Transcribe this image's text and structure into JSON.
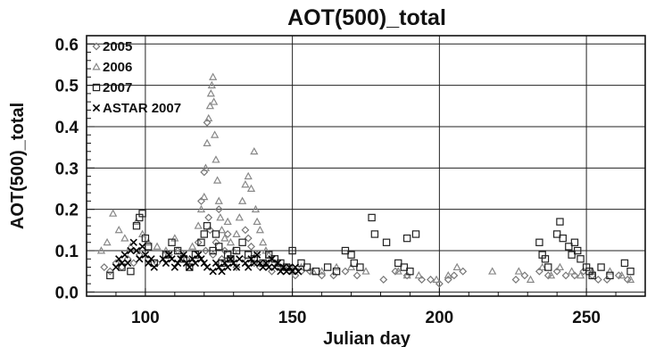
{
  "chart_data": {
    "type": "scatter",
    "title": "AOT(500)_total",
    "xlabel": "Julian day",
    "ylabel": "AOT(500)_total",
    "xlim": [
      80,
      270
    ],
    "ylim": [
      -0.01,
      0.62
    ],
    "xticks": [
      {
        "v": 100,
        "label": "100"
      },
      {
        "v": 150,
        "label": "150"
      },
      {
        "v": 200,
        "label": "200"
      },
      {
        "v": 250,
        "label": "250"
      }
    ],
    "yticks": [
      {
        "v": 0.0,
        "label": "0.0"
      },
      {
        "v": 0.1,
        "label": "0.1"
      },
      {
        "v": 0.2,
        "label": "0.2"
      },
      {
        "v": 0.3,
        "label": "0.3"
      },
      {
        "v": 0.4,
        "label": "0.4"
      },
      {
        "v": 0.5,
        "label": "0.5"
      },
      {
        "v": 0.6,
        "label": "0.6"
      }
    ],
    "grid": true,
    "legend_position": "top-left",
    "series": [
      {
        "name": "2005",
        "marker": "diamond",
        "color": "#777777",
        "points": [
          [
            86,
            0.06
          ],
          [
            88,
            0.05
          ],
          [
            90,
            0.07
          ],
          [
            92,
            0.06
          ],
          [
            94,
            0.08
          ],
          [
            96,
            0.07
          ],
          [
            98,
            0.09
          ],
          [
            101,
            0.08
          ],
          [
            104,
            0.07
          ],
          [
            108,
            0.09
          ],
          [
            111,
            0.1
          ],
          [
            114,
            0.08
          ],
          [
            116,
            0.07
          ],
          [
            118,
            0.12
          ],
          [
            119,
            0.22
          ],
          [
            120,
            0.29
          ],
          [
            120.5,
            0.1
          ],
          [
            121,
            0.41
          ],
          [
            121.5,
            0.18
          ],
          [
            122,
            0.15
          ],
          [
            123,
            0.09
          ],
          [
            124,
            0.12
          ],
          [
            125,
            0.2
          ],
          [
            126,
            0.08
          ],
          [
            127,
            0.1
          ],
          [
            128,
            0.14
          ],
          [
            129,
            0.08
          ],
          [
            131,
            0.06
          ],
          [
            133,
            0.08
          ],
          [
            134,
            0.15
          ],
          [
            135,
            0.13
          ],
          [
            136,
            0.11
          ],
          [
            137,
            0.07
          ],
          [
            138,
            0.09
          ],
          [
            139,
            0.06
          ],
          [
            141,
            0.07
          ],
          [
            143,
            0.05
          ],
          [
            145,
            0.06
          ],
          [
            147,
            0.05
          ],
          [
            149,
            0.06
          ],
          [
            151,
            0.04
          ],
          [
            153,
            0.05
          ],
          [
            156,
            0.05
          ],
          [
            160,
            0.04
          ],
          [
            164,
            0.04
          ],
          [
            168,
            0.05
          ],
          [
            172,
            0.04
          ],
          [
            181,
            0.03
          ],
          [
            185,
            0.05
          ],
          [
            189,
            0.04
          ],
          [
            194,
            0.03
          ],
          [
            197,
            0.03
          ],
          [
            200,
            0.02
          ],
          [
            203,
            0.03
          ],
          [
            205,
            0.04
          ],
          [
            208,
            0.05
          ],
          [
            226,
            0.03
          ],
          [
            229,
            0.04
          ],
          [
            234,
            0.05
          ],
          [
            237,
            0.04
          ],
          [
            240,
            0.05
          ],
          [
            243,
            0.04
          ],
          [
            246,
            0.04
          ],
          [
            249,
            0.05
          ],
          [
            252,
            0.04
          ],
          [
            254,
            0.03
          ],
          [
            257,
            0.03
          ],
          [
            261,
            0.04
          ],
          [
            264,
            0.03
          ]
        ]
      },
      {
        "name": "2006",
        "marker": "triangle",
        "color": "#888888",
        "points": [
          [
            85,
            0.1
          ],
          [
            87,
            0.12
          ],
          [
            89,
            0.19
          ],
          [
            91,
            0.15
          ],
          [
            93,
            0.13
          ],
          [
            95,
            0.11
          ],
          [
            97,
            0.17
          ],
          [
            99,
            0.14
          ],
          [
            101,
            0.12
          ],
          [
            104,
            0.11
          ],
          [
            107,
            0.1
          ],
          [
            110,
            0.13
          ],
          [
            113,
            0.09
          ],
          [
            116,
            0.11
          ],
          [
            118,
            0.16
          ],
          [
            119,
            0.2
          ],
          [
            120,
            0.23
          ],
          [
            120.5,
            0.3
          ],
          [
            121,
            0.36
          ],
          [
            121.5,
            0.42
          ],
          [
            122,
            0.45
          ],
          [
            122.3,
            0.48
          ],
          [
            122.6,
            0.5
          ],
          [
            123,
            0.52
          ],
          [
            123.3,
            0.46
          ],
          [
            123.6,
            0.38
          ],
          [
            124,
            0.32
          ],
          [
            124.5,
            0.27
          ],
          [
            125,
            0.22
          ],
          [
            125.5,
            0.18
          ],
          [
            126,
            0.15
          ],
          [
            127,
            0.13
          ],
          [
            128,
            0.17
          ],
          [
            129,
            0.12
          ],
          [
            130,
            0.1
          ],
          [
            131,
            0.14
          ],
          [
            132,
            0.18
          ],
          [
            133,
            0.22
          ],
          [
            134,
            0.26
          ],
          [
            135,
            0.28
          ],
          [
            136,
            0.25
          ],
          [
            137,
            0.34
          ],
          [
            137.5,
            0.2
          ],
          [
            138,
            0.17
          ],
          [
            139,
            0.15
          ],
          [
            140,
            0.12
          ],
          [
            141,
            0.1
          ],
          [
            142,
            0.09
          ],
          [
            143,
            0.08
          ],
          [
            145,
            0.07
          ],
          [
            147,
            0.06
          ],
          [
            150,
            0.05
          ],
          [
            153,
            0.06
          ],
          [
            157,
            0.05
          ],
          [
            160,
            0.05
          ],
          [
            165,
            0.06
          ],
          [
            170,
            0.06
          ],
          [
            175,
            0.05
          ],
          [
            186,
            0.05
          ],
          [
            189,
            0.04
          ],
          [
            193,
            0.04
          ],
          [
            199,
            0.03
          ],
          [
            203,
            0.04
          ],
          [
            206,
            0.06
          ],
          [
            218,
            0.05
          ],
          [
            227,
            0.05
          ],
          [
            231,
            0.03
          ],
          [
            235,
            0.06
          ],
          [
            238,
            0.04
          ],
          [
            241,
            0.06
          ],
          [
            245,
            0.05
          ],
          [
            248,
            0.04
          ],
          [
            252,
            0.05
          ],
          [
            258,
            0.05
          ],
          [
            262,
            0.04
          ],
          [
            265,
            0.03
          ]
        ]
      },
      {
        "name": "2007",
        "marker": "square",
        "color": "#222222",
        "points": [
          [
            88,
            0.04
          ],
          [
            92,
            0.06
          ],
          [
            95,
            0.05
          ],
          [
            97,
            0.16
          ],
          [
            98,
            0.18
          ],
          [
            99,
            0.19
          ],
          [
            100,
            0.13
          ],
          [
            101,
            0.11
          ],
          [
            103,
            0.07
          ],
          [
            107,
            0.09
          ],
          [
            109,
            0.12
          ],
          [
            111,
            0.1
          ],
          [
            113,
            0.08
          ],
          [
            115,
            0.06
          ],
          [
            117,
            0.09
          ],
          [
            119,
            0.12
          ],
          [
            120,
            0.14
          ],
          [
            121,
            0.16
          ],
          [
            123,
            0.1
          ],
          [
            124,
            0.14
          ],
          [
            125,
            0.11
          ],
          [
            126,
            0.07
          ],
          [
            128,
            0.09
          ],
          [
            129,
            0.08
          ],
          [
            131,
            0.1
          ],
          [
            133,
            0.12
          ],
          [
            135,
            0.09
          ],
          [
            137,
            0.08
          ],
          [
            140,
            0.07
          ],
          [
            142,
            0.09
          ],
          [
            144,
            0.08
          ],
          [
            146,
            0.07
          ],
          [
            148,
            0.06
          ],
          [
            150,
            0.1
          ],
          [
            153,
            0.07
          ],
          [
            155,
            0.06
          ],
          [
            158,
            0.05
          ],
          [
            162,
            0.06
          ],
          [
            165,
            0.05
          ],
          [
            168,
            0.1
          ],
          [
            170,
            0.09
          ],
          [
            171,
            0.07
          ],
          [
            173,
            0.06
          ],
          [
            177,
            0.18
          ],
          [
            178,
            0.14
          ],
          [
            182,
            0.12
          ],
          [
            186,
            0.07
          ],
          [
            188,
            0.06
          ],
          [
            189,
            0.13
          ],
          [
            190,
            0.05
          ],
          [
            192,
            0.14
          ],
          [
            234,
            0.12
          ],
          [
            235,
            0.09
          ],
          [
            236,
            0.08
          ],
          [
            237,
            0.06
          ],
          [
            240,
            0.14
          ],
          [
            241,
            0.17
          ],
          [
            242,
            0.13
          ],
          [
            244,
            0.11
          ],
          [
            245,
            0.09
          ],
          [
            246,
            0.12
          ],
          [
            247,
            0.1
          ],
          [
            248,
            0.08
          ],
          [
            250,
            0.06
          ],
          [
            251,
            0.05
          ],
          [
            252,
            0.04
          ],
          [
            255,
            0.06
          ],
          [
            258,
            0.04
          ],
          [
            263,
            0.07
          ],
          [
            265,
            0.05
          ]
        ]
      },
      {
        "name": "ASTAR 2007",
        "marker": "x",
        "color": "#000000",
        "points": [
          [
            90,
            0.06
          ],
          [
            91,
            0.08
          ],
          [
            92,
            0.07
          ],
          [
            93,
            0.09
          ],
          [
            94,
            0.07
          ],
          [
            95,
            0.1
          ],
          [
            96,
            0.12
          ],
          [
            97,
            0.1
          ],
          [
            98,
            0.08
          ],
          [
            99,
            0.11
          ],
          [
            100,
            0.09
          ],
          [
            101,
            0.07
          ],
          [
            102,
            0.08
          ],
          [
            103,
            0.06
          ],
          [
            106,
            0.08
          ],
          [
            107,
            0.07
          ],
          [
            108,
            0.09
          ],
          [
            109,
            0.08
          ],
          [
            110,
            0.06
          ],
          [
            111,
            0.07
          ],
          [
            112,
            0.08
          ],
          [
            113,
            0.09
          ],
          [
            114,
            0.07
          ],
          [
            115,
            0.06
          ],
          [
            116,
            0.08
          ],
          [
            117,
            0.07
          ],
          [
            118,
            0.09
          ],
          [
            119,
            0.08
          ],
          [
            120,
            0.07
          ],
          [
            121,
            0.06
          ],
          [
            123,
            0.05
          ],
          [
            124,
            0.07
          ],
          [
            125,
            0.06
          ],
          [
            126,
            0.05
          ],
          [
            127,
            0.07
          ],
          [
            128,
            0.06
          ],
          [
            129,
            0.08
          ],
          [
            130,
            0.07
          ],
          [
            131,
            0.06
          ],
          [
            132,
            0.08
          ],
          [
            134,
            0.07
          ],
          [
            135,
            0.06
          ],
          [
            136,
            0.08
          ],
          [
            137,
            0.07
          ],
          [
            138,
            0.09
          ],
          [
            139,
            0.07
          ],
          [
            140,
            0.06
          ],
          [
            141,
            0.07
          ],
          [
            142,
            0.06
          ],
          [
            143,
            0.08
          ],
          [
            144,
            0.06
          ],
          [
            145,
            0.07
          ],
          [
            146,
            0.05
          ],
          [
            147,
            0.06
          ],
          [
            148,
            0.05
          ],
          [
            149,
            0.06
          ],
          [
            150,
            0.05
          ],
          [
            151,
            0.06
          ],
          [
            152,
            0.05
          ]
        ]
      }
    ]
  }
}
